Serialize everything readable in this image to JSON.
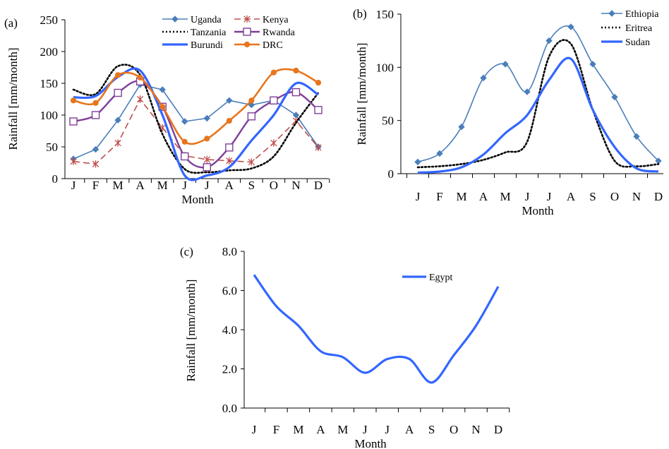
{
  "chart_data": [
    {
      "panel_label": "(a)",
      "type": "line",
      "ylabel": "Rainfall [mm/month]",
      "xlabel": "Month",
      "categories": [
        "J",
        "F",
        "M",
        "A",
        "M",
        "J",
        "J",
        "A",
        "S",
        "O",
        "N",
        "D"
      ],
      "ylim": [
        0,
        250
      ],
      "yticks": [
        "0",
        "50",
        "100",
        "150",
        "200",
        "250"
      ],
      "legend_position": "top-right",
      "series": [
        {
          "name": "Uganda",
          "color": "#4a7ebb",
          "marker": "diamond",
          "dash": "",
          "width": 1.6,
          "smooth": false,
          "values": [
            31,
            46,
            92,
            148,
            140,
            90,
            95,
            123,
            116,
            123,
            100,
            50
          ]
        },
        {
          "name": "Kenya",
          "color": "#c0504d",
          "marker": "star",
          "dash": "9 5",
          "width": 1.6,
          "smooth": false,
          "values": [
            27,
            23,
            56,
            125,
            80,
            36,
            30,
            28,
            26,
            56,
            91,
            49
          ]
        },
        {
          "name": "Tanzania",
          "color": "#000000",
          "marker": "none",
          "dash": "2 3",
          "width": 2.6,
          "smooth": true,
          "values": [
            140,
            133,
            177,
            163,
            70,
            15,
            10,
            13,
            16,
            35,
            88,
            135
          ]
        },
        {
          "name": "Rwanda",
          "color": "#7f3f98",
          "marker": "square",
          "dash": "",
          "width": 2.4,
          "smooth": true,
          "values": [
            90,
            100,
            135,
            153,
            113,
            35,
            18,
            49,
            98,
            123,
            136,
            108
          ]
        },
        {
          "name": "Burundi",
          "color": "#3366ff",
          "marker": "none",
          "dash": "",
          "width": 3.2,
          "smooth": true,
          "values": [
            128,
            130,
            160,
            170,
            100,
            5,
            5,
            18,
            60,
            100,
            150,
            132
          ]
        },
        {
          "name": "DRC",
          "color": "#e7751d",
          "marker": "circle",
          "dash": "",
          "width": 2.6,
          "smooth": true,
          "values": [
            123,
            119,
            163,
            159,
            113,
            58,
            63,
            91,
            123,
            167,
            170,
            151
          ]
        }
      ]
    },
    {
      "panel_label": "(b)",
      "type": "line",
      "ylabel": "Rainfall [mm/month]",
      "xlabel": "Month",
      "categories": [
        "J",
        "F",
        "M",
        "A",
        "M",
        "J",
        "J",
        "A",
        "S",
        "O",
        "N",
        "D"
      ],
      "ylim": [
        0,
        150
      ],
      "yticks": [
        "0",
        "50",
        "100",
        "150"
      ],
      "legend_position": "top-right",
      "series": [
        {
          "name": "Ethiopia",
          "color": "#4a7ebb",
          "marker": "diamond",
          "dash": "",
          "width": 1.6,
          "smooth": true,
          "values": [
            11,
            19,
            44,
            90,
            103,
            77,
            125,
            138,
            103,
            72,
            35,
            12
          ]
        },
        {
          "name": "Eritrea",
          "color": "#000000",
          "marker": "none",
          "dash": "2 3",
          "width": 2.6,
          "smooth": true,
          "values": [
            6,
            7,
            9,
            13,
            20,
            30,
            110,
            122,
            60,
            12,
            7,
            9
          ]
        },
        {
          "name": "Sudan",
          "color": "#3366ff",
          "marker": "none",
          "dash": "",
          "width": 3.2,
          "smooth": true,
          "values": [
            1,
            2,
            6,
            18,
            38,
            55,
            88,
            108,
            60,
            25,
            5,
            2
          ]
        }
      ]
    },
    {
      "panel_label": "(c)",
      "type": "line",
      "ylabel": "Rainfall [mm/month]",
      "xlabel": "Month",
      "categories": [
        "J",
        "F",
        "M",
        "A",
        "M",
        "J",
        "J",
        "A",
        "S",
        "O",
        "N",
        "D"
      ],
      "ylim": [
        0,
        8
      ],
      "yticks": [
        "0.0",
        "2.0",
        "4.0",
        "6.0",
        "8.0"
      ],
      "legend_position": "top-center",
      "series": [
        {
          "name": "Egypt",
          "color": "#3366ff",
          "marker": "none",
          "dash": "",
          "width": 3.2,
          "smooth": true,
          "values": [
            6.8,
            5.2,
            4.2,
            2.9,
            2.6,
            1.8,
            2.5,
            2.5,
            1.3,
            2.7,
            4.2,
            6.2
          ]
        }
      ]
    }
  ]
}
